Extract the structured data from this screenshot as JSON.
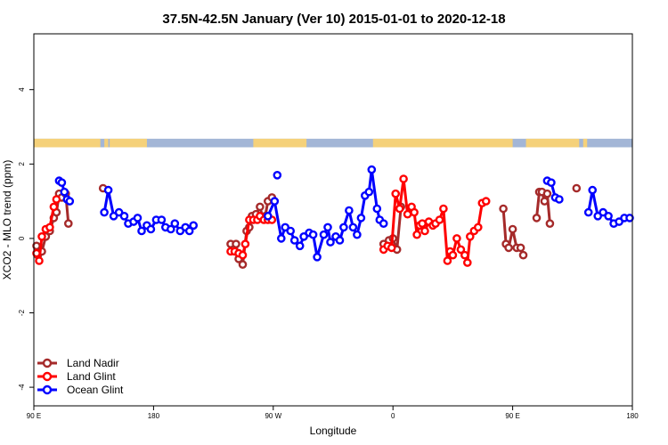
{
  "chart_data": {
    "type": "line",
    "title": "37.5N-42.5N January (Ver 10)   2015-01-01 to 2020-12-18",
    "xlabel": "Longitude",
    "ylabel": "XCO2 - MLO trend (ppm)",
    "xlim": [
      90,
      540
    ],
    "ylim": [
      -4.5,
      5.5
    ],
    "x_ticks": [
      {
        "value": 90,
        "label": "90 E"
      },
      {
        "value": 180,
        "label": "180"
      },
      {
        "value": 270,
        "label": "90 W"
      },
      {
        "value": 360,
        "label": "0"
      },
      {
        "value": 450,
        "label": "90 E"
      },
      {
        "value": 540,
        "label": "180"
      }
    ],
    "y_ticks": [
      {
        "value": -4,
        "label": "-4"
      },
      {
        "value": -2,
        "label": "-2"
      },
      {
        "value": 0,
        "label": "0"
      },
      {
        "value": 2,
        "label": "2"
      },
      {
        "value": 4,
        "label": "4"
      }
    ],
    "grid": false,
    "legend_position": "bottom-left",
    "land_mask": {
      "y_range": [
        2.45,
        2.68
      ],
      "land_color": "#f5d17a",
      "ocean_color": "#a3b6d6",
      "land_segments": [
        [
          90,
          140
        ],
        [
          143,
          146
        ],
        [
          147,
          175
        ],
        [
          255,
          295
        ],
        [
          345,
          390
        ],
        [
          390,
          450
        ],
        [
          460,
          500
        ],
        [
          503,
          506
        ]
      ]
    },
    "series": [
      {
        "name": "Land Nadir",
        "color": "#a52a2a",
        "segments": [
          [
            [
              92,
              -0.2
            ],
            [
              93,
              -0.45
            ],
            [
              96,
              -0.35
            ],
            [
              99,
              0.05
            ],
            [
              102,
              0.2
            ],
            [
              105,
              0.55
            ],
            [
              107,
              0.7
            ],
            [
              109,
              1.2
            ],
            [
              111,
              1.1
            ],
            [
              114,
              1.2
            ],
            [
              116,
              0.4
            ]
          ],
          [
            [
              142,
              1.35
            ]
          ],
          [
            [
              238,
              -0.15
            ],
            [
              240,
              -0.3
            ],
            [
              242,
              -0.15
            ],
            [
              244,
              -0.55
            ],
            [
              247,
              -0.7
            ],
            [
              250,
              0.2
            ],
            [
              252,
              0.3
            ],
            [
              254,
              0.6
            ],
            [
              257,
              0.65
            ],
            [
              260,
              0.85
            ],
            [
              262,
              0.55
            ],
            [
              264,
              0.6
            ],
            [
              266,
              1.0
            ],
            [
              269,
              1.1
            ]
          ],
          [
            [
              353,
              -0.15
            ],
            [
              357,
              -0.05
            ],
            [
              360,
              0.0
            ],
            [
              363,
              -0.3
            ],
            [
              366,
              0.85
            ]
          ],
          [
            [
              443,
              0.8
            ],
            [
              445,
              -0.15
            ],
            [
              447,
              -0.25
            ],
            [
              450,
              0.25
            ],
            [
              453,
              -0.25
            ],
            [
              456,
              -0.25
            ],
            [
              458,
              -0.45
            ]
          ],
          [
            [
              468,
              0.55
            ],
            [
              470,
              1.25
            ],
            [
              472,
              1.25
            ],
            [
              474,
              1.0
            ],
            [
              476,
              1.2
            ],
            [
              478,
              0.4
            ]
          ],
          [
            [
              498,
              1.35
            ]
          ]
        ]
      },
      {
        "name": "Land Glint",
        "color": "#ff0000",
        "segments": [
          [
            [
              92,
              -0.4
            ],
            [
              94,
              -0.6
            ],
            [
              96,
              0.05
            ],
            [
              99,
              0.25
            ],
            [
              102,
              0.3
            ],
            [
              105,
              0.85
            ],
            [
              107,
              1.05
            ]
          ],
          [
            [
              238,
              -0.35
            ],
            [
              241,
              -0.35
            ],
            [
              244,
              -0.4
            ],
            [
              247,
              -0.45
            ],
            [
              249,
              -0.15
            ],
            [
              252,
              0.5
            ],
            [
              255,
              0.5
            ],
            [
              258,
              0.5
            ],
            [
              260,
              0.6
            ],
            [
              263,
              0.5
            ],
            [
              266,
              0.5
            ],
            [
              269,
              0.5
            ]
          ],
          [
            [
              353,
              -0.3
            ],
            [
              356,
              -0.2
            ],
            [
              359,
              -0.25
            ],
            [
              362,
              1.2
            ],
            [
              365,
              0.8
            ],
            [
              368,
              1.6
            ],
            [
              371,
              0.65
            ],
            [
              374,
              0.85
            ],
            [
              376,
              0.7
            ],
            [
              378,
              0.1
            ],
            [
              380,
              0.35
            ],
            [
              382,
              0.4
            ],
            [
              384,
              0.2
            ],
            [
              387,
              0.45
            ],
            [
              390,
              0.35
            ],
            [
              392,
              0.4
            ],
            [
              395,
              0.5
            ],
            [
              398,
              0.8
            ],
            [
              401,
              -0.6
            ],
            [
              403,
              -0.35
            ],
            [
              405,
              -0.45
            ],
            [
              408,
              0.0
            ],
            [
              411,
              -0.3
            ],
            [
              414,
              -0.45
            ],
            [
              416,
              -0.65
            ],
            [
              418,
              0.05
            ],
            [
              421,
              0.2
            ],
            [
              424,
              0.3
            ],
            [
              427,
              0.95
            ],
            [
              430,
              1.0
            ]
          ]
        ]
      },
      {
        "name": "Ocean Glint",
        "color": "#0000ff",
        "segments": [
          [
            [
              109,
              1.55
            ],
            [
              111,
              1.5
            ],
            [
              113,
              1.25
            ],
            [
              115,
              1.05
            ],
            [
              117,
              1.0
            ]
          ],
          [
            [
              143,
              0.7
            ],
            [
              146,
              1.3
            ],
            [
              150,
              0.6
            ],
            [
              154,
              0.7
            ],
            [
              158,
              0.6
            ],
            [
              161,
              0.4
            ],
            [
              165,
              0.45
            ],
            [
              168,
              0.55
            ],
            [
              171,
              0.2
            ],
            [
              175,
              0.35
            ],
            [
              178,
              0.25
            ],
            [
              182,
              0.5
            ],
            [
              186,
              0.5
            ],
            [
              189,
              0.3
            ],
            [
              193,
              0.25
            ],
            [
              196,
              0.4
            ],
            [
              200,
              0.2
            ],
            [
              204,
              0.3
            ],
            [
              207,
              0.2
            ],
            [
              210,
              0.35
            ]
          ],
          [
            [
              273,
              1.7
            ]
          ],
          [
            [
              266,
              0.6
            ],
            [
              271,
              1.0
            ],
            [
              276,
              0.0
            ],
            [
              279,
              0.3
            ],
            [
              283,
              0.2
            ],
            [
              286,
              -0.05
            ],
            [
              290,
              -0.2
            ],
            [
              293,
              0.05
            ],
            [
              297,
              0.15
            ],
            [
              300,
              0.1
            ],
            [
              303,
              -0.5
            ],
            [
              308,
              0.1
            ],
            [
              311,
              0.3
            ],
            [
              313,
              -0.1
            ],
            [
              317,
              0.05
            ],
            [
              320,
              -0.05
            ],
            [
              323,
              0.3
            ],
            [
              327,
              0.75
            ],
            [
              330,
              0.3
            ],
            [
              333,
              0.1
            ],
            [
              336,
              0.55
            ],
            [
              339,
              1.15
            ],
            [
              342,
              1.25
            ],
            [
              344,
              1.85
            ],
            [
              348,
              0.8
            ],
            [
              350,
              0.5
            ],
            [
              353,
              0.4
            ]
          ],
          [
            [
              476,
              1.55
            ],
            [
              479,
              1.5
            ],
            [
              482,
              1.1
            ],
            [
              485,
              1.05
            ]
          ],
          [
            [
              507,
              0.7
            ],
            [
              510,
              1.3
            ],
            [
              514,
              0.6
            ],
            [
              518,
              0.7
            ],
            [
              522,
              0.6
            ],
            [
              526,
              0.4
            ],
            [
              530,
              0.45
            ],
            [
              534,
              0.55
            ],
            [
              538,
              0.55
            ]
          ]
        ]
      }
    ]
  }
}
